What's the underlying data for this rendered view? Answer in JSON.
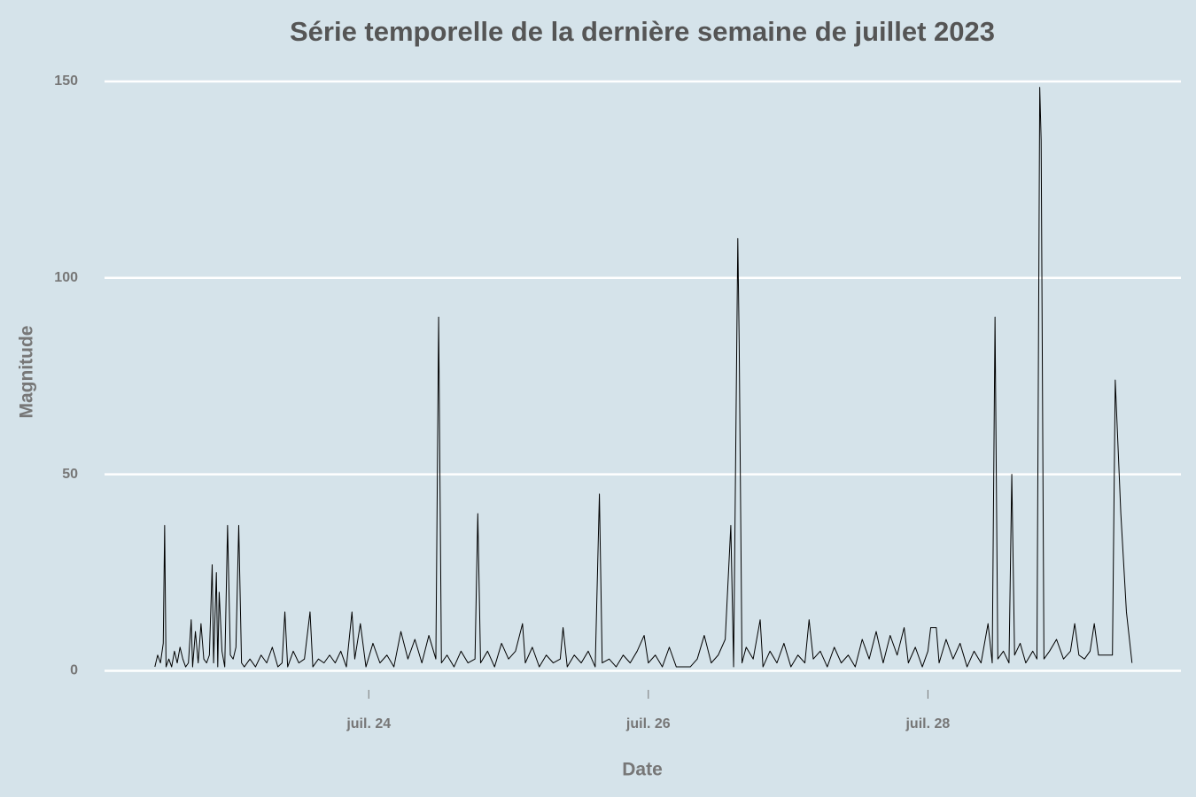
{
  "chart_data": {
    "type": "line",
    "title": "Série temporelle de la dernière semaine de juillet 2023",
    "x_label": "Date",
    "y_label": "Magnitude",
    "x": [
      22.47,
      22.49,
      22.51,
      22.53,
      22.54,
      22.55,
      22.57,
      22.59,
      22.61,
      22.63,
      22.65,
      22.67,
      22.69,
      22.71,
      22.73,
      22.74,
      22.76,
      22.78,
      22.8,
      22.82,
      22.84,
      22.86,
      22.88,
      22.89,
      22.91,
      22.92,
      22.93,
      22.95,
      22.97,
      22.99,
      23.01,
      23.03,
      23.05,
      23.07,
      23.09,
      23.11,
      23.15,
      23.19,
      23.23,
      23.27,
      23.31,
      23.35,
      23.38,
      23.4,
      23.42,
      23.46,
      23.5,
      23.54,
      23.58,
      23.6,
      23.64,
      23.68,
      23.72,
      23.76,
      23.8,
      23.84,
      23.88,
      23.9,
      23.94,
      23.98,
      24.03,
      24.08,
      24.13,
      24.18,
      24.23,
      24.28,
      24.33,
      24.38,
      24.43,
      24.48,
      24.5,
      24.52,
      24.56,
      24.61,
      24.66,
      24.71,
      24.76,
      24.78,
      24.8,
      24.85,
      24.9,
      24.95,
      25.0,
      25.05,
      25.1,
      25.12,
      25.17,
      25.22,
      25.27,
      25.32,
      25.37,
      25.39,
      25.42,
      25.47,
      25.52,
      25.57,
      25.62,
      25.65,
      25.67,
      25.72,
      25.77,
      25.82,
      25.87,
      25.92,
      25.97,
      26.0,
      26.05,
      26.1,
      26.15,
      26.2,
      26.25,
      26.3,
      26.35,
      26.4,
      26.45,
      26.5,
      26.55,
      26.59,
      26.61,
      26.64,
      26.65,
      26.67,
      26.7,
      26.75,
      26.8,
      26.82,
      26.87,
      26.92,
      26.97,
      27.02,
      27.07,
      27.12,
      27.15,
      27.18,
      27.23,
      27.28,
      27.33,
      27.38,
      27.43,
      27.48,
      27.53,
      27.58,
      27.63,
      27.68,
      27.73,
      27.78,
      27.83,
      27.86,
      27.91,
      27.96,
      28.0,
      28.02,
      28.06,
      28.08,
      28.13,
      28.18,
      28.23,
      28.28,
      28.33,
      28.38,
      28.43,
      28.46,
      28.48,
      28.5,
      28.54,
      28.58,
      28.6,
      28.62,
      28.66,
      28.7,
      28.75,
      28.78,
      28.8,
      28.81,
      28.83,
      28.87,
      28.92,
      28.97,
      29.02,
      29.05,
      29.08,
      29.12,
      29.16,
      29.19,
      29.22,
      29.27,
      29.32,
      29.34,
      29.38,
      29.42,
      29.46
    ],
    "series": [
      {
        "color": "#000000",
        "values": [
          1,
          4,
          2,
          7,
          37,
          1,
          3,
          1,
          5,
          2,
          6,
          3,
          1,
          2,
          13,
          1,
          10,
          2,
          12,
          3,
          2,
          4,
          27,
          2,
          25,
          1,
          20,
          5,
          1,
          37,
          4,
          3,
          6,
          37,
          2,
          1,
          3,
          1,
          4,
          2,
          6,
          1,
          2,
          15,
          1,
          5,
          2,
          3,
          15,
          1,
          3,
          2,
          4,
          2,
          5,
          1,
          15,
          3,
          12,
          1,
          7,
          2,
          4,
          1,
          10,
          3,
          8,
          2,
          9,
          3,
          90,
          2,
          4,
          1,
          5,
          2,
          3,
          40,
          2,
          5,
          1,
          7,
          3,
          5,
          12,
          2,
          6,
          1,
          4,
          2,
          3,
          11,
          1,
          4,
          2,
          5,
          1,
          45,
          2,
          3,
          1,
          4,
          2,
          5,
          9,
          2,
          4,
          1,
          6,
          1,
          1,
          1,
          3,
          9,
          2,
          4,
          8,
          37,
          1,
          110,
          83,
          2,
          6,
          3,
          13,
          1,
          5,
          2,
          7,
          1,
          4,
          2,
          13,
          3,
          5,
          1,
          6,
          2,
          4,
          1,
          8,
          3,
          10,
          2,
          9,
          4,
          11,
          2,
          6,
          1,
          5,
          11,
          11,
          2,
          8,
          3,
          7,
          1,
          5,
          2,
          12,
          2,
          90,
          3,
          5,
          2,
          50,
          4,
          7,
          2,
          5,
          3,
          148.5,
          135,
          3,
          5,
          8,
          3,
          5,
          12,
          4,
          3,
          5,
          12,
          4,
          4,
          4,
          74,
          40,
          15,
          2
        ]
      }
    ],
    "xlim": [
      22.11,
      29.81
    ],
    "xticks": [
      {
        "value": 24,
        "label": "juil. 24"
      },
      {
        "value": 26,
        "label": "juil. 26"
      },
      {
        "value": 28,
        "label": "juil. 28"
      }
    ],
    "ylim": [
      -6.2,
      156.3
    ],
    "yticks": [
      0,
      50,
      100,
      150
    ],
    "grid": true
  }
}
